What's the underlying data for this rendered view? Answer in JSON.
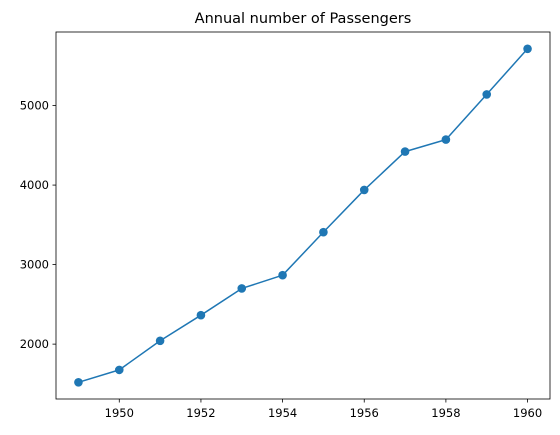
{
  "chart_data": {
    "type": "line",
    "title": "Annual number of Passengers",
    "xlabel": "",
    "ylabel": "",
    "x": [
      1949,
      1950,
      1951,
      1952,
      1953,
      1954,
      1955,
      1956,
      1957,
      1958,
      1959,
      1960
    ],
    "series": [
      {
        "values": [
          1520,
          1676,
          2042,
          2364,
          2700,
          2867,
          3408,
          3939,
          4421,
          4572,
          5140,
          5714
        ]
      }
    ],
    "xticks": [
      1950,
      1952,
      1954,
      1956,
      1958,
      1960
    ],
    "yticks": [
      2000,
      3000,
      4000,
      5000
    ],
    "xlim": [
      1948.45,
      1960.55
    ],
    "ylim": [
      1310,
      5925
    ],
    "grid": false,
    "colors": {
      "line": "#1f77b4",
      "marker": "#1f77b4",
      "axes": "#000000"
    }
  }
}
